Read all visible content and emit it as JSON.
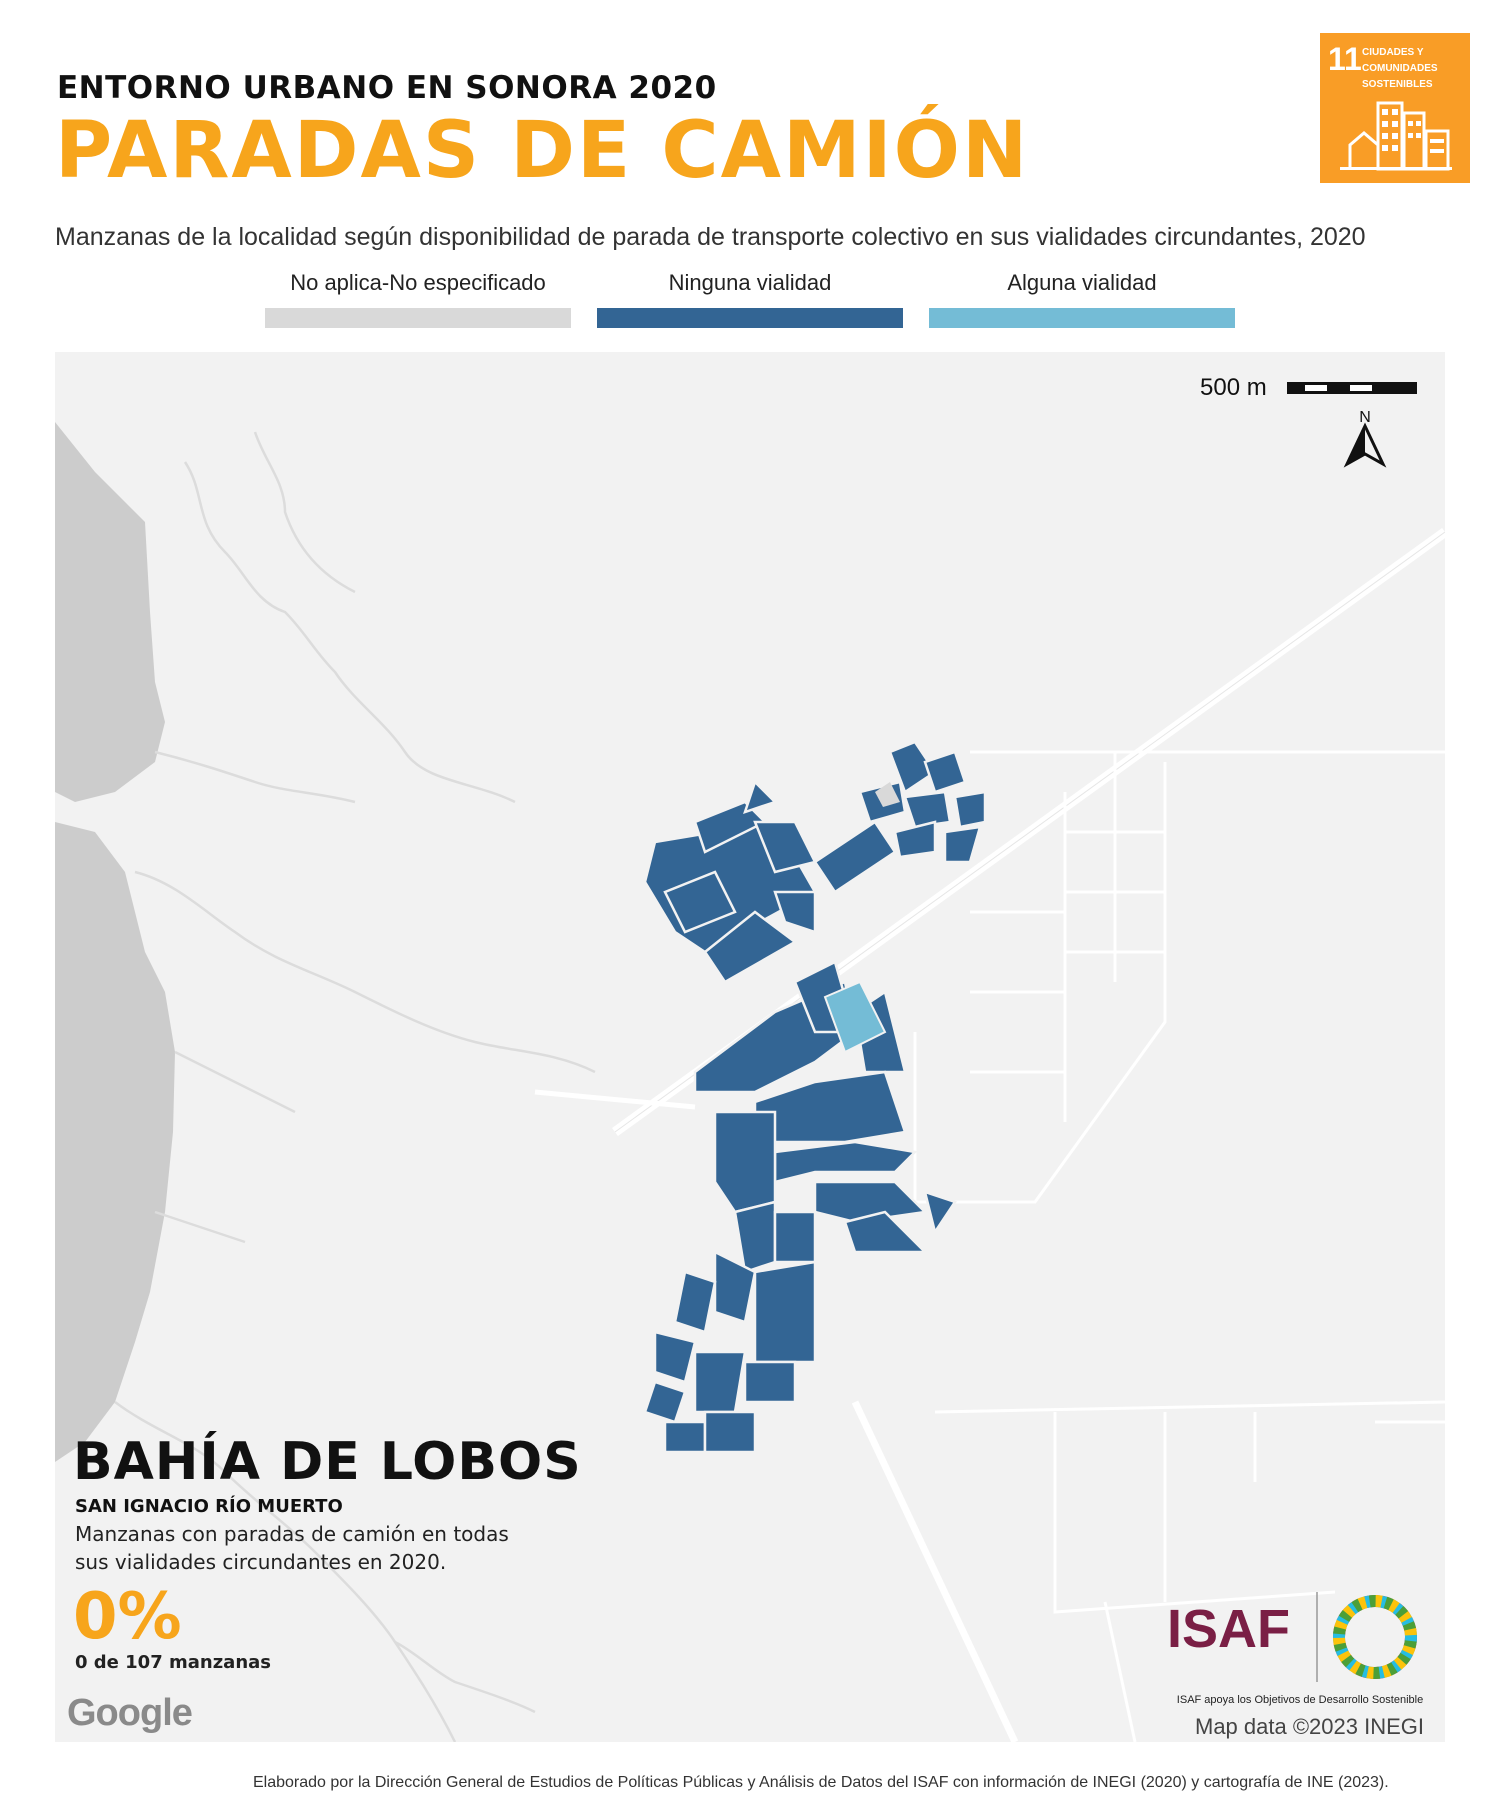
{
  "header": {
    "kicker": "ENTORNO URBANO EN SONORA 2020",
    "title": "PARADAS DE CAMIÓN",
    "subtitle": "Manzanas de la localidad según disponibilidad de parada de transporte colectivo en sus vialidades circundantes, 2020"
  },
  "legend": [
    {
      "label": "No aplica-No especificado",
      "color": "#d9d9d9"
    },
    {
      "label": "Ninguna vialidad",
      "color": "#336594"
    },
    {
      "label": "Alguna vialidad",
      "color": "#74bcd6"
    }
  ],
  "sdg_badge": {
    "number": "11",
    "label": "CIUDADES Y COMUNIDADES SOSTENIBLES",
    "color": "#f99d26"
  },
  "map": {
    "scale_label": "500 m",
    "north_label": "N",
    "place_name": "BAHÍA DE LOBOS",
    "municipality": "SAN IGNACIO RÍO MUERTO",
    "stat_description": "Manzanas con paradas de camión en todas sus vialidades circundantes en 2020.",
    "stat_value": "0%",
    "stat_detail": "0 de 107 manzanas",
    "google_label": "Google",
    "attribution": "Map data ©2023 INEGI"
  },
  "isaf": {
    "name": "ISAF",
    "tagline": "ISAF apoya los Objetivos de Desarrollo Sostenible"
  },
  "footer": "Elaborado por la Dirección General de Estudios de Políticas Públicas y Análisis de Datos del ISAF con información de INEGI (2020) y cartografía de INE (2023)."
}
